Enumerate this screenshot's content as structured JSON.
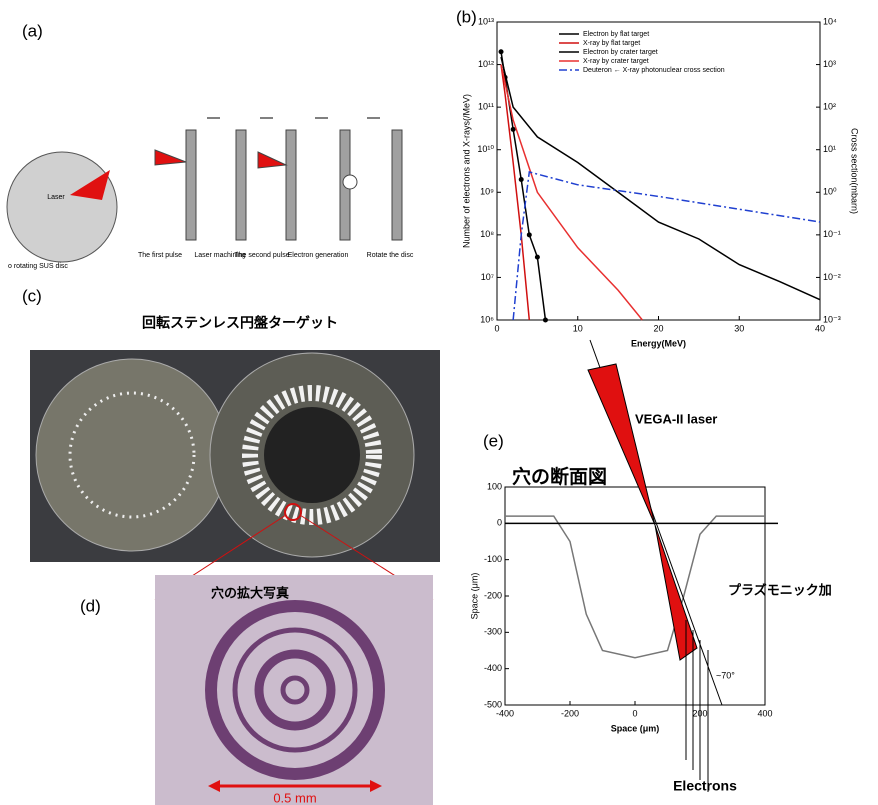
{
  "panels": {
    "a": {
      "label": "(a)",
      "disc_label": "Laser",
      "disc_caption": "o rotating SUS disc",
      "steps": [
        "The first pulse",
        "Laser machining",
        "The second pulse",
        "Electron generation",
        "Rotate the disc"
      ]
    },
    "b": {
      "label": "(b)",
      "chart": {
        "type": "line",
        "xlabel": "Energy(MeV)",
        "ylabel": "Number of electrons and X-rays(/MeV)",
        "y2label": "Cross section(mbarn)",
        "log": true,
        "xlim": [
          0,
          40
        ],
        "xticks": [
          0,
          10,
          20,
          30,
          40
        ],
        "ylim": [
          1000000.0,
          10000000000000.0
        ],
        "yticks": [
          {
            "value": 1000000.0,
            "label": "10⁶"
          },
          {
            "value": 10000000.0,
            "label": "10⁷"
          },
          {
            "value": 100000000.0,
            "label": "10⁸"
          },
          {
            "value": 1000000000.0,
            "label": "10⁹"
          },
          {
            "value": 10000000000.0,
            "label": "10¹⁰"
          },
          {
            "value": 100000000000.0,
            "label": "10¹¹"
          },
          {
            "value": 1000000000000.0,
            "label": "10¹²"
          },
          {
            "value": 10000000000000.0,
            "label": "10¹³"
          }
        ],
        "y2lim": [
          0.001,
          10000
        ],
        "y2ticks": [
          {
            "value": 0.001,
            "label": "10⁻³"
          },
          {
            "value": 0.01,
            "label": "10⁻²"
          },
          {
            "value": 0.1,
            "label": "10⁻¹"
          },
          {
            "value": 1,
            "label": "10⁰"
          },
          {
            "value": 10,
            "label": "10¹"
          },
          {
            "value": 100,
            "label": "10²"
          },
          {
            "value": 1000,
            "label": "10³"
          },
          {
            "value": 10000,
            "label": "10⁴"
          }
        ],
        "series": [
          {
            "name": "Electron by flat target",
            "color": "#000000",
            "marker": "circle",
            "x": [
              0.5,
              1,
              2,
              3,
              4,
              5,
              6
            ],
            "values": [
              2000000000000.0,
              500000000000.0,
              30000000000.0,
              2000000000.0,
              100000000.0,
              30000000.0,
              1000000.0
            ]
          },
          {
            "name": "X-ray by flat target",
            "color": "#d01010",
            "x": [
              0.5,
              1,
              2,
              3,
              4
            ],
            "values": [
              1000000000000.0,
              200000000000.0,
              5000000000.0,
              100000000.0,
              1000000.0
            ]
          },
          {
            "name": "Electron by crater target",
            "color": "#000000",
            "x": [
              0.5,
              2,
              5,
              10,
              15,
              20,
              25,
              30,
              35,
              40
            ],
            "values": [
              1500000000000.0,
              100000000000.0,
              20000000000.0,
              5000000000.0,
              1000000000.0,
              200000000.0,
              80000000.0,
              20000000.0,
              8000000.0,
              3000000.0
            ]
          },
          {
            "name": "X-ray by crater target",
            "color": "#e83030",
            "x": [
              0.5,
              2,
              5,
              10,
              15,
              18
            ],
            "values": [
              1000000000000.0,
              50000000000.0,
              1000000000.0,
              50000000.0,
              5000000.0,
              1000000.0
            ]
          },
          {
            "name": "Deuteron ← X-ray photonuclear cross section",
            "color": "#2040d0",
            "dash": "8 3 2 3",
            "axis": "y2",
            "x": [
              2,
              3,
              4,
              10,
              20,
              30,
              40
            ],
            "values": [
              0.001,
              0.1,
              3,
              1.5,
              0.8,
              0.4,
              0.2
            ]
          }
        ]
      }
    },
    "c": {
      "label": "(c)",
      "title": "回転ステンレス円盤ターゲット"
    },
    "d": {
      "label": "(d)",
      "title": "穴の拡大写真",
      "scale": "0.5 mm"
    },
    "e": {
      "label": "(e)",
      "title": "穴の断面図",
      "laser": "VEGA-II laser",
      "plasmonic": "プラズモニック加",
      "angle": "~70°",
      "electrons": "Electrons",
      "chart": {
        "type": "line",
        "xlabel": "Space (μm)",
        "ylabel": "Space (μm)",
        "xlim": [
          -400,
          400
        ],
        "xticks": [
          -400,
          -200,
          0,
          200,
          400
        ],
        "ylim": [
          -500,
          100
        ],
        "yticks": [
          100,
          0,
          -100,
          -200,
          -300,
          -400,
          -500
        ],
        "series": [
          {
            "color": "#777777",
            "x": [
              -400,
              -250,
              -200,
              -150,
              -100,
              0,
              100,
              150,
              200,
              250,
              400
            ],
            "values": [
              20,
              20,
              -50,
              -250,
              -350,
              -370,
              -350,
              -200,
              -30,
              20,
              20
            ]
          }
        ]
      }
    }
  }
}
